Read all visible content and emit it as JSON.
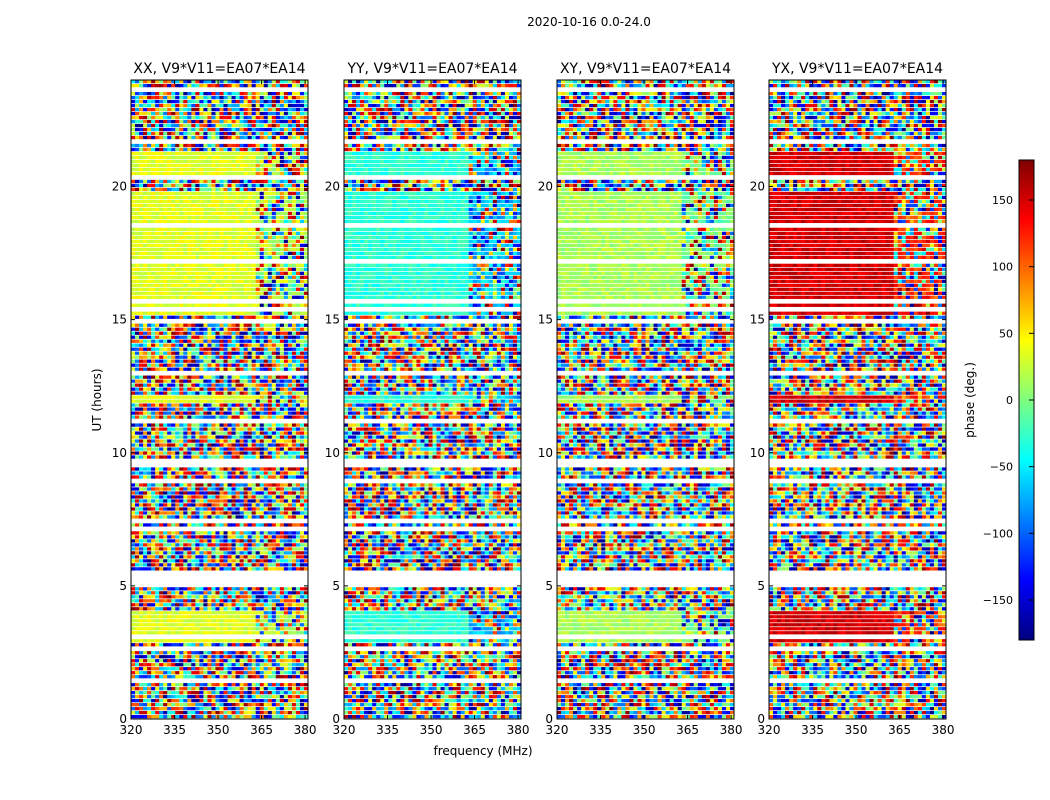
{
  "figure": {
    "suptitle": "2020-10-16 0.0-24.0"
  },
  "chart_data": {
    "type": "heatmap",
    "title": "2020-10-16 0.0-24.0",
    "xlabel": "frequency (MHz)",
    "ylabel": "UT (hours)",
    "xlim": [
      320,
      381
    ],
    "ylim": [
      0,
      24
    ],
    "xticks": [
      320,
      335,
      350,
      365,
      380
    ],
    "yticks": [
      0,
      5,
      10,
      15,
      20
    ],
    "panels": [
      {
        "title": "XX, V9*V11=EA07*EA14",
        "coherent_phase_deg": 35,
        "coherent_phase_high_freq_deg": 20
      },
      {
        "title": "YY, V9*V11=EA07*EA14",
        "coherent_phase_deg": -30,
        "coherent_phase_high_freq_deg": -65
      },
      {
        "title": "XY, V9*V11=EA07*EA14",
        "coherent_phase_deg": 15,
        "coherent_phase_high_freq_deg": 0
      },
      {
        "title": "YX, V9*V11=EA07*EA14",
        "coherent_phase_deg": 150,
        "coherent_phase_high_freq_deg": 120
      }
    ],
    "coherent_time_ranges_hours": [
      [
        15.2,
        19.8
      ],
      [
        20.4,
        21.3
      ],
      [
        11.8,
        12.2
      ],
      [
        2.8,
        4.0
      ]
    ],
    "colorbar": {
      "label": "phase (deg.)",
      "range": [
        -180,
        180
      ],
      "ticks": [
        -150,
        -100,
        -50,
        0,
        50,
        100,
        150
      ],
      "colormap": "jet"
    }
  }
}
